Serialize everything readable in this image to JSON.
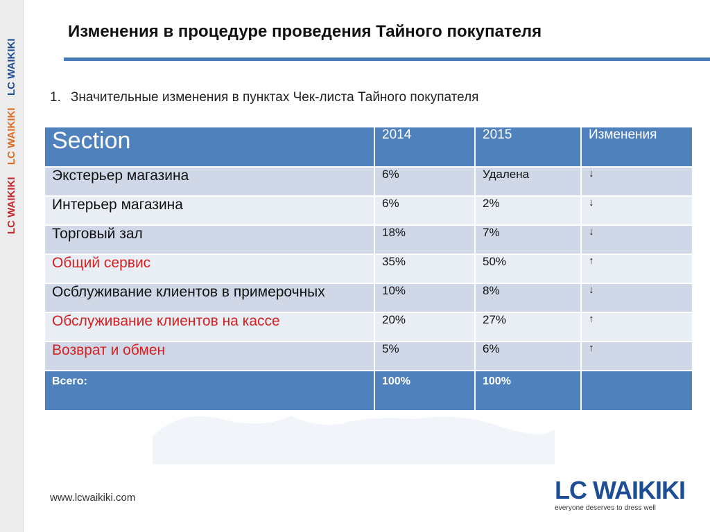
{
  "sidebar": {
    "logo_text": "LC WAIKIKI",
    "colors": [
      "#c8242b",
      "#e06b22",
      "#1d4d94"
    ]
  },
  "slide": {
    "title": "Изменения в процедуре проведения Тайного покупателя",
    "heading_number": "1.",
    "heading_text": "Значительные изменения в пунктах Чек-листа Тайного покупателя"
  },
  "table": {
    "columns": [
      "Section",
      "2014",
      "2015",
      "Изменения"
    ],
    "rows": [
      {
        "name": "Экстерьер магазина",
        "y2014": "6%",
        "y2015": "Удалена",
        "change": "↓",
        "highlight": false
      },
      {
        "name": "Интерьер магазина",
        "y2014": "6%",
        "y2015": "2%",
        "change": "↓",
        "highlight": false
      },
      {
        "name": "Торговый зал",
        "y2014": "18%",
        "y2015": "7%",
        "change": "↓",
        "highlight": false
      },
      {
        "name": "Общий сервис",
        "y2014": "35%",
        "y2015": "50%",
        "change": "↑",
        "highlight": true
      },
      {
        "name": "Осблуживание клиентов в примерочных",
        "y2014": "10%",
        "y2015": "8%",
        "change": "↓",
        "highlight": false
      },
      {
        "name": "Обслуживание клиентов на кассе",
        "y2014": "20%",
        "y2015": "27%",
        "change": "↑",
        "highlight": true
      },
      {
        "name": "Возврат и обмен",
        "y2014": "5%",
        "y2015": "6%",
        "change": "↑",
        "highlight": true
      }
    ],
    "total": {
      "label": "Всего:",
      "y2014": "100%",
      "y2015": "100%",
      "change": ""
    }
  },
  "footer": {
    "url": "www.lcwaikiki.com",
    "logo_text": "LC WAIKIKI",
    "tagline": "everyone deserves to dress well"
  },
  "colors": {
    "table_header": "#4f81bd",
    "row_odd": "#d0d8e8",
    "row_even": "#e9edf4",
    "highlight_text": "#d42020",
    "title_rule": "#4a7ab8",
    "brand_blue": "#1d4d94"
  }
}
